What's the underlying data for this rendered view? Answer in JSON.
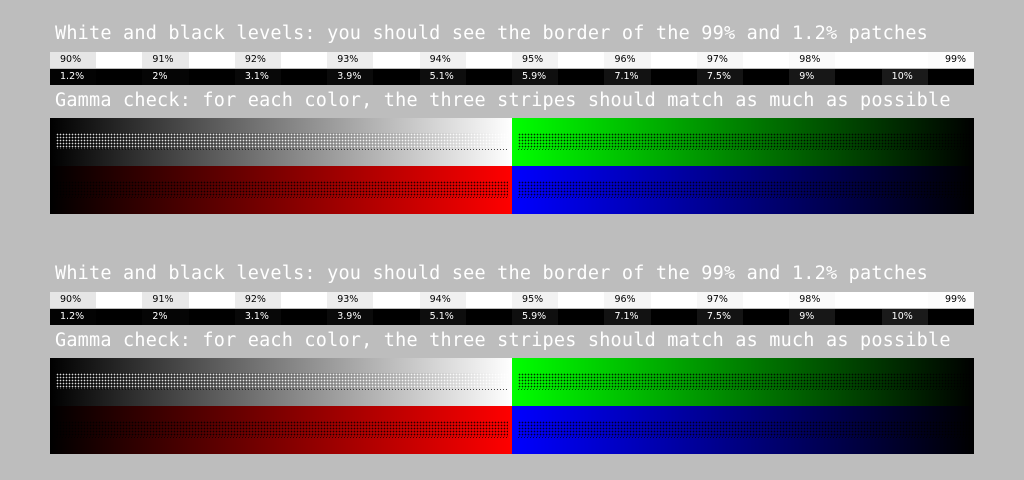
{
  "levels_heading": "White and black levels: you should see the border of the 99% and 1.2% patches",
  "gamma_heading": "Gamma check: for each color, the three stripes should match as much as possible",
  "white_patches": [
    {
      "label": "90%",
      "level": 0.9
    },
    {
      "label": "91%",
      "level": 0.91
    },
    {
      "label": "92%",
      "level": 0.92
    },
    {
      "label": "93%",
      "level": 0.93
    },
    {
      "label": "94%",
      "level": 0.94
    },
    {
      "label": "95%",
      "level": 0.95
    },
    {
      "label": "96%",
      "level": 0.96
    },
    {
      "label": "97%",
      "level": 0.97
    },
    {
      "label": "98%",
      "level": 0.98
    },
    {
      "label": "99%",
      "level": 0.99
    }
  ],
  "black_patches": [
    {
      "label": "1.2%",
      "level": 0.012
    },
    {
      "label": "2%",
      "level": 0.02
    },
    {
      "label": "3.1%",
      "level": 0.031
    },
    {
      "label": "3.9%",
      "level": 0.039
    },
    {
      "label": "5.1%",
      "level": 0.051
    },
    {
      "label": "5.9%",
      "level": 0.059
    },
    {
      "label": "7.1%",
      "level": 0.071
    },
    {
      "label": "7.5%",
      "level": 0.075
    },
    {
      "label": "9%",
      "level": 0.09
    },
    {
      "label": "10%",
      "level": 0.1
    }
  ],
  "colors": {
    "background": "#bdbdbd",
    "heading_text": "#ffffff",
    "gamma_gray": "#ffffff",
    "gamma_green": "#00ff00",
    "gamma_red": "#ff0000",
    "gamma_blue": "#0000ff"
  }
}
